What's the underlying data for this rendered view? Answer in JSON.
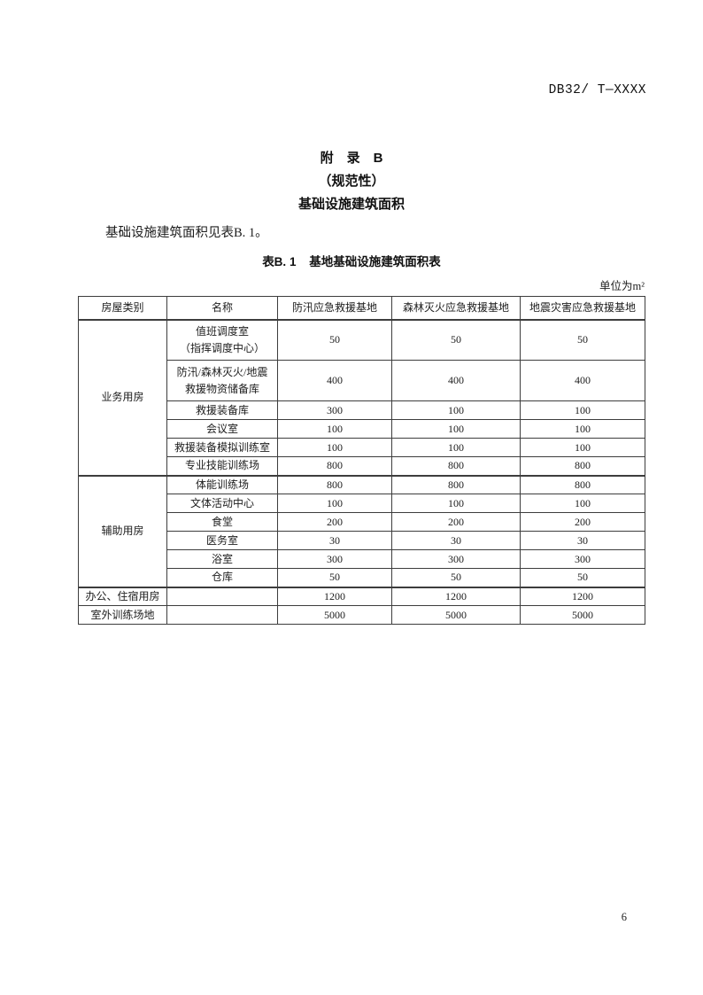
{
  "page": {
    "header_code": "DB32/ T—XXXX",
    "page_number": "6"
  },
  "titles": {
    "appendix": "附　录　B",
    "normative": "（规范性）",
    "subject": "基础设施建筑面积"
  },
  "intro_paragraph": "基础设施建筑面积见表B. 1。",
  "table": {
    "caption_label": "表B. 1",
    "caption_title": "基地基础设施建筑面积表",
    "unit": "单位为m²",
    "columns": [
      "房屋类别",
      "名称",
      "防汛应急救援基地",
      "森林灭火应急救援基地",
      "地震灾害应急救援基地"
    ],
    "groups": [
      {
        "category": "业务用房",
        "rows": [
          {
            "name_lines": [
              "值班调度室",
              "（指挥调度中心）"
            ],
            "values": [
              "50",
              "50",
              "50"
            ]
          },
          {
            "name_lines": [
              "防汛/森林灭火/地震",
              "救援物资储备库"
            ],
            "values": [
              "400",
              "400",
              "400"
            ]
          },
          {
            "name_lines": [
              "救援装备库"
            ],
            "values": [
              "300",
              "100",
              "100"
            ]
          },
          {
            "name_lines": [
              "会议室"
            ],
            "values": [
              "100",
              "100",
              "100"
            ]
          },
          {
            "name_lines": [
              "救援装备模拟训练室"
            ],
            "values": [
              "100",
              "100",
              "100"
            ]
          },
          {
            "name_lines": [
              "专业技能训练场"
            ],
            "values": [
              "800",
              "800",
              "800"
            ]
          }
        ]
      },
      {
        "category": "辅助用房",
        "rows": [
          {
            "name_lines": [
              "体能训练场"
            ],
            "values": [
              "800",
              "800",
              "800"
            ]
          },
          {
            "name_lines": [
              "文体活动中心"
            ],
            "values": [
              "100",
              "100",
              "100"
            ]
          },
          {
            "name_lines": [
              "食堂"
            ],
            "values": [
              "200",
              "200",
              "200"
            ]
          },
          {
            "name_lines": [
              "医务室"
            ],
            "values": [
              "30",
              "30",
              "30"
            ]
          },
          {
            "name_lines": [
              "浴室"
            ],
            "values": [
              "300",
              "300",
              "300"
            ]
          },
          {
            "name_lines": [
              "仓库"
            ],
            "values": [
              "50",
              "50",
              "50"
            ]
          }
        ]
      }
    ],
    "footer_rows": [
      {
        "category": "办公、住宿用房",
        "name": "",
        "values": [
          "1200",
          "1200",
          "1200"
        ],
        "thick_top": true
      },
      {
        "category": "室外训练场地",
        "name": "",
        "values": [
          "5000",
          "5000",
          "5000"
        ],
        "thick_top": false
      }
    ]
  }
}
